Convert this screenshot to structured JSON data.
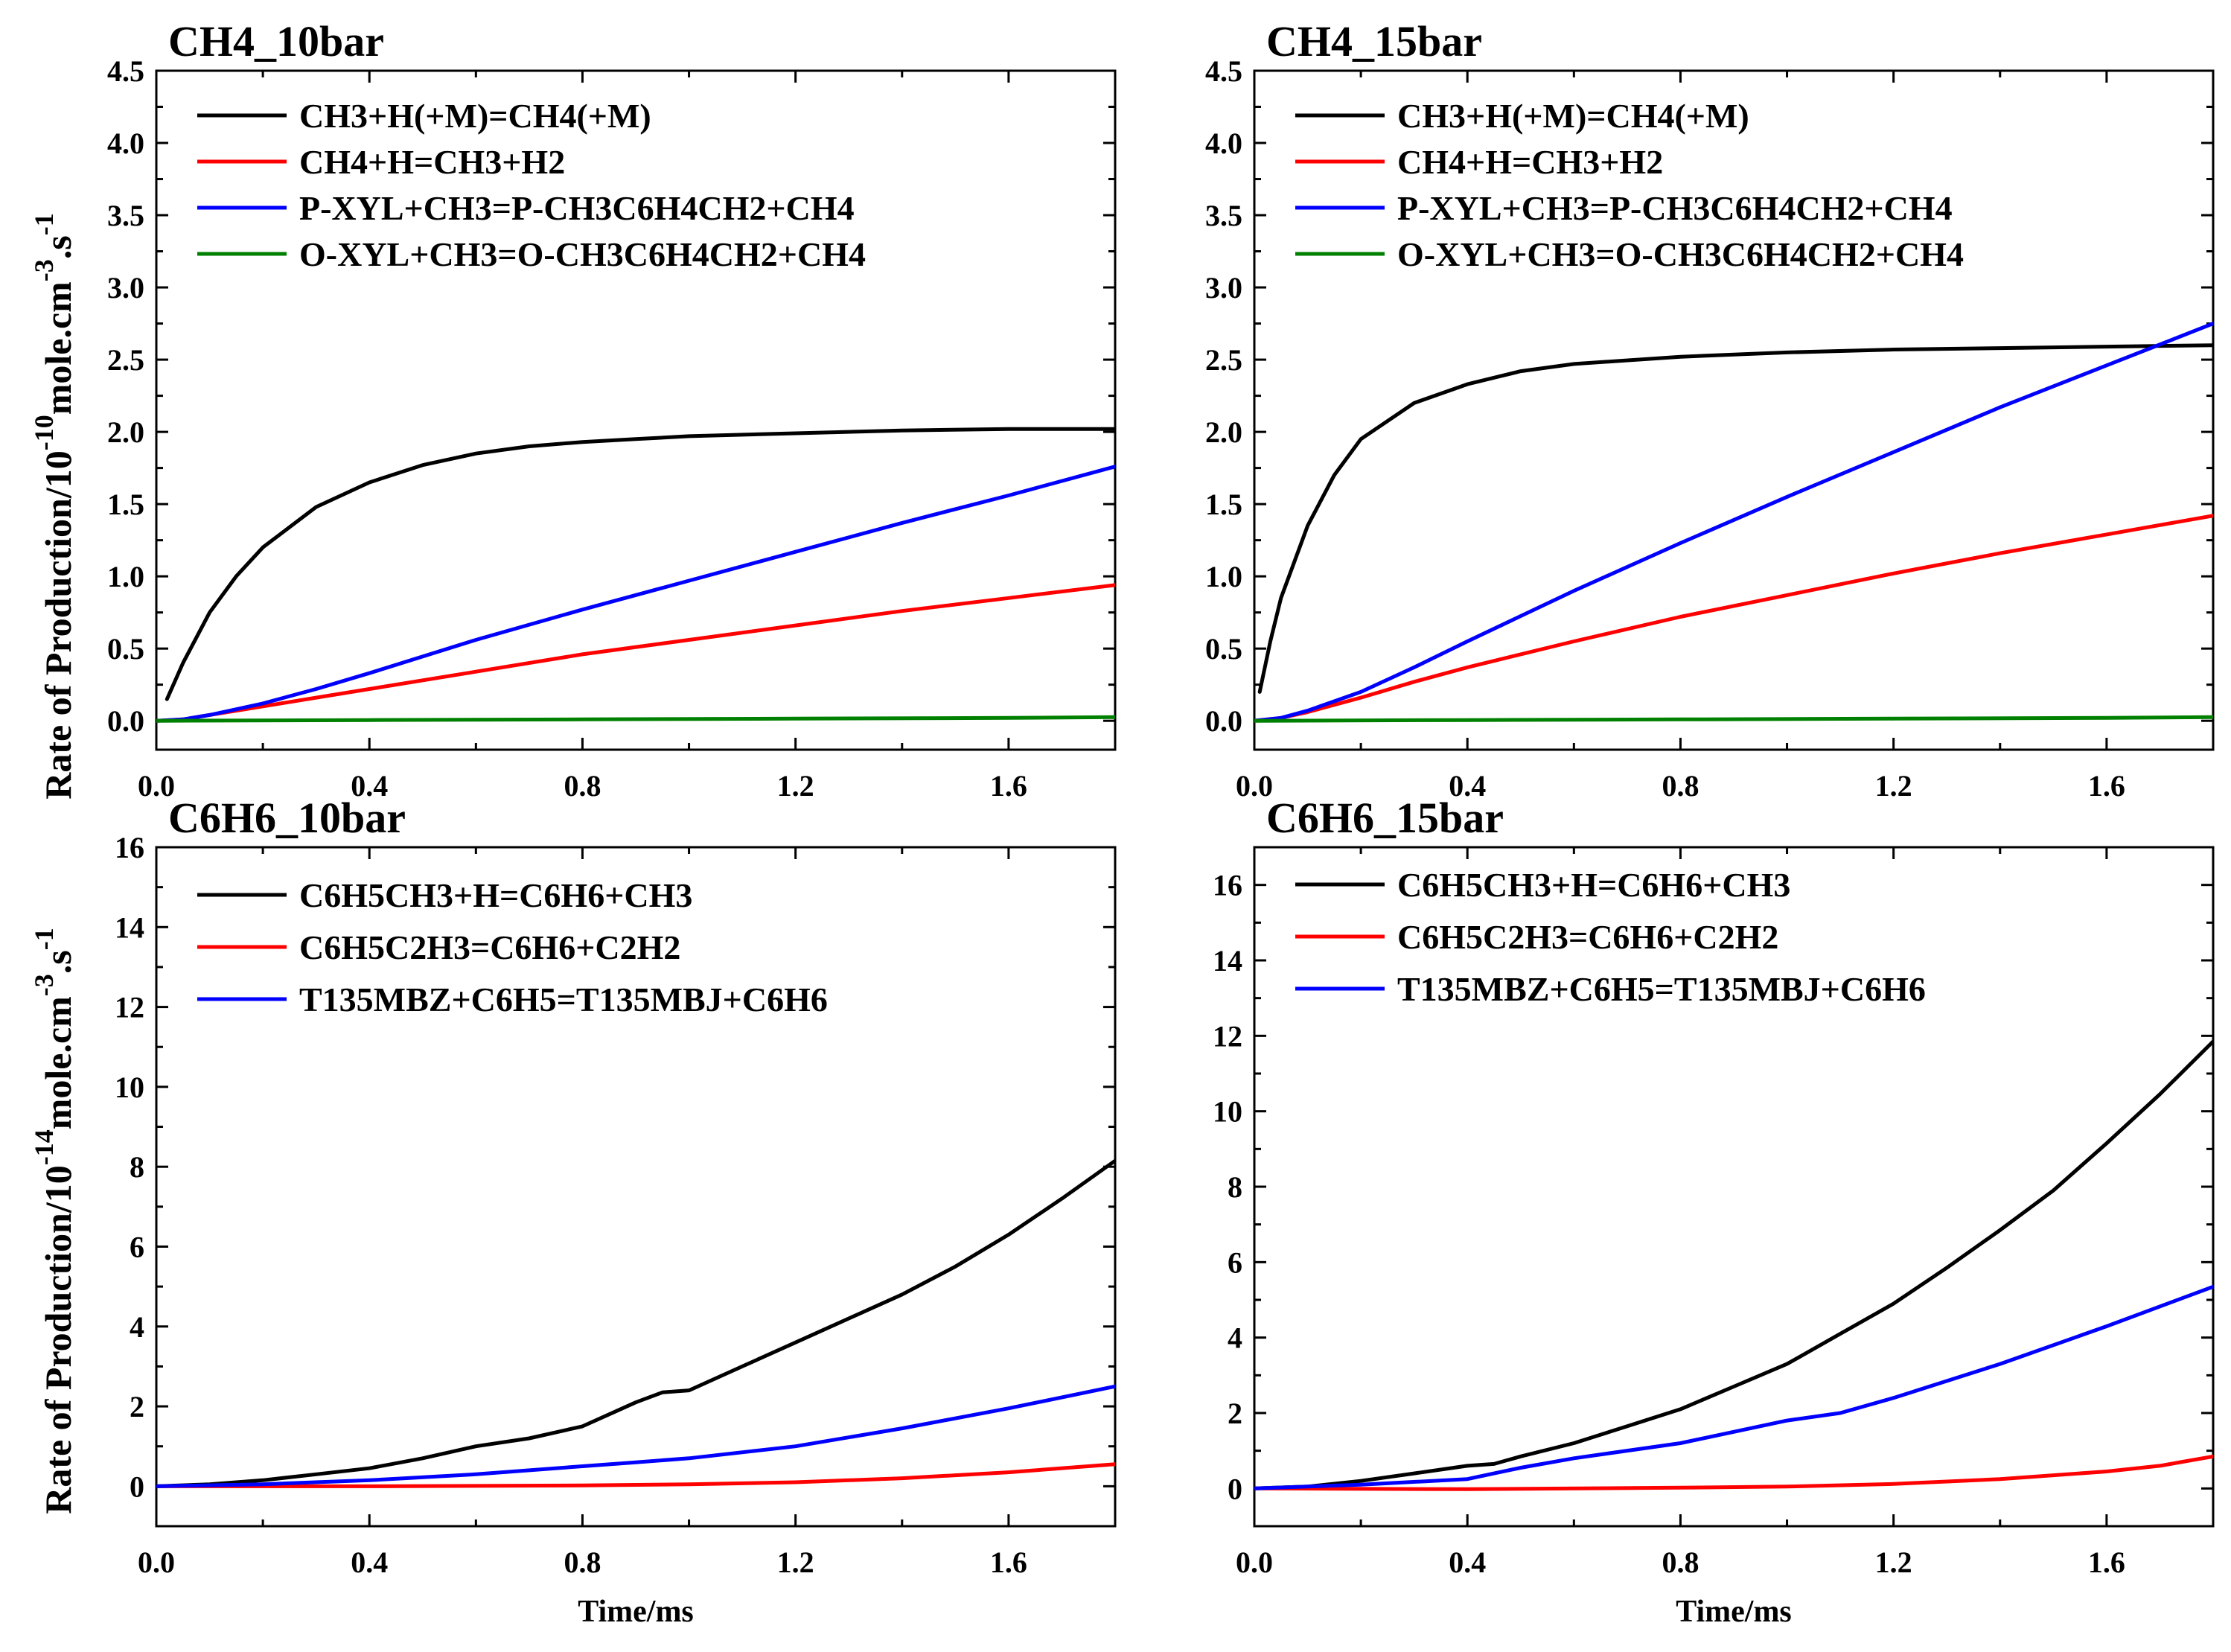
{
  "ylabel_top": {
    "main": "Rate of Production/10",
    "exp": "-10",
    "unit": "mole.cm",
    "unit_exp": "-3",
    "unit2": ".s",
    "unit2_exp": "-1"
  },
  "ylabel_bottom": {
    "main": "Rate of Production/10",
    "exp": "-14",
    "unit": "mole.cm",
    "unit_exp": "-3",
    "unit2": ".s",
    "unit2_exp": "-1"
  },
  "chart_data": [
    {
      "type": "line",
      "title": "CH4_10bar",
      "xlabel": "",
      "ylabel": "",
      "xlim": [
        0,
        1.8
      ],
      "ylim": [
        -0.2,
        4.5
      ],
      "xticks": [
        "0.0",
        "0.4",
        "0.8",
        "1.2",
        "1.6"
      ],
      "xtick_values": [
        0,
        0.4,
        0.8,
        1.2,
        1.6
      ],
      "yticks": [
        "0.0",
        "0.5",
        "1.0",
        "1.5",
        "2.0",
        "2.5",
        "3.0",
        "3.5",
        "4.0",
        "4.5"
      ],
      "ytick_values": [
        0,
        0.5,
        1.0,
        1.5,
        2.0,
        2.5,
        3.0,
        3.5,
        4.0,
        4.5
      ],
      "legend": "top-left",
      "series": [
        {
          "name": "CH3+H(+M)=CH4(+M)",
          "color": "#000000",
          "x": [
            0.02,
            0.05,
            0.1,
            0.15,
            0.2,
            0.3,
            0.4,
            0.5,
            0.6,
            0.7,
            0.8,
            0.9,
            1.0,
            1.2,
            1.4,
            1.6,
            1.8
          ],
          "y": [
            0.15,
            0.4,
            0.75,
            1.0,
            1.2,
            1.48,
            1.65,
            1.77,
            1.85,
            1.9,
            1.93,
            1.95,
            1.97,
            1.99,
            2.01,
            2.02,
            2.02
          ]
        },
        {
          "name": "CH4+H=CH3+H2",
          "color": "#ff0000",
          "x": [
            0.0,
            0.05,
            0.1,
            0.2,
            0.3,
            0.4,
            0.6,
            0.8,
            1.0,
            1.2,
            1.4,
            1.6,
            1.8
          ],
          "y": [
            0.0,
            0.01,
            0.04,
            0.1,
            0.16,
            0.22,
            0.34,
            0.46,
            0.56,
            0.66,
            0.76,
            0.85,
            0.94
          ]
        },
        {
          "name": "P-XYL+CH3=P-CH3C6H4CH2+CH4",
          "color": "#0000ff",
          "x": [
            0.0,
            0.05,
            0.1,
            0.2,
            0.3,
            0.4,
            0.6,
            0.8,
            1.0,
            1.2,
            1.4,
            1.6,
            1.8
          ],
          "y": [
            0.0,
            0.01,
            0.04,
            0.12,
            0.22,
            0.33,
            0.56,
            0.77,
            0.97,
            1.17,
            1.37,
            1.56,
            1.76
          ]
        },
        {
          "name": "O-XYL+CH3=O-CH3C6H4CH2+CH4",
          "color": "#008000",
          "x": [
            0.0,
            0.4,
            0.8,
            1.2,
            1.6,
            1.8
          ],
          "y": [
            0.0,
            0.005,
            0.01,
            0.015,
            0.02,
            0.025
          ]
        }
      ]
    },
    {
      "type": "line",
      "title": "CH4_15bar",
      "xlabel": "",
      "ylabel": "",
      "xlim": [
        0,
        1.8
      ],
      "ylim": [
        -0.2,
        4.5
      ],
      "xticks": [
        "0.0",
        "0.4",
        "0.8",
        "1.2",
        "1.6"
      ],
      "xtick_values": [
        0,
        0.4,
        0.8,
        1.2,
        1.6
      ],
      "yticks": [
        "0.0",
        "0.5",
        "1.0",
        "1.5",
        "2.0",
        "2.5",
        "3.0",
        "3.5",
        "4.0",
        "4.5"
      ],
      "ytick_values": [
        0,
        0.5,
        1.0,
        1.5,
        2.0,
        2.5,
        3.0,
        3.5,
        4.0,
        4.5
      ],
      "legend": "top-left",
      "series": [
        {
          "name": "CH3+H(+M)=CH4(+M)",
          "color": "#000000",
          "x": [
            0.01,
            0.03,
            0.05,
            0.1,
            0.15,
            0.2,
            0.3,
            0.4,
            0.5,
            0.6,
            0.8,
            1.0,
            1.2,
            1.4,
            1.6,
            1.8
          ],
          "y": [
            0.2,
            0.55,
            0.85,
            1.35,
            1.7,
            1.95,
            2.2,
            2.33,
            2.42,
            2.47,
            2.52,
            2.55,
            2.57,
            2.58,
            2.59,
            2.6
          ]
        },
        {
          "name": "CH4+H=CH3+H2",
          "color": "#ff0000",
          "x": [
            0.0,
            0.05,
            0.1,
            0.2,
            0.3,
            0.4,
            0.6,
            0.8,
            1.0,
            1.2,
            1.4,
            1.6,
            1.8
          ],
          "y": [
            0.0,
            0.02,
            0.06,
            0.16,
            0.27,
            0.37,
            0.55,
            0.72,
            0.87,
            1.02,
            1.16,
            1.29,
            1.42
          ]
        },
        {
          "name": "P-XYL+CH3=P-CH3C6H4CH2+CH4",
          "color": "#0000ff",
          "x": [
            0.0,
            0.05,
            0.1,
            0.2,
            0.3,
            0.4,
            0.6,
            0.8,
            1.0,
            1.2,
            1.4,
            1.6,
            1.8
          ],
          "y": [
            0.0,
            0.02,
            0.07,
            0.2,
            0.37,
            0.55,
            0.9,
            1.23,
            1.55,
            1.86,
            2.17,
            2.46,
            2.75
          ]
        },
        {
          "name": "O-XYL+CH3=O-CH3C6H4CH2+CH4",
          "color": "#008000",
          "x": [
            0.0,
            0.4,
            0.8,
            1.2,
            1.6,
            1.8
          ],
          "y": [
            0.0,
            0.005,
            0.01,
            0.015,
            0.02,
            0.025
          ]
        }
      ]
    },
    {
      "type": "line",
      "title": "C6H6_10bar",
      "xlabel": "Time/ms",
      "ylabel": "",
      "xlim": [
        0,
        1.8
      ],
      "ylim": [
        -1,
        16
      ],
      "xticks": [
        "0.0",
        "0.4",
        "0.8",
        "1.2",
        "1.6"
      ],
      "xtick_values": [
        0,
        0.4,
        0.8,
        1.2,
        1.6
      ],
      "yticks": [
        "0",
        "2",
        "4",
        "6",
        "8",
        "10",
        "12",
        "14",
        "16"
      ],
      "ytick_values": [
        0,
        2,
        4,
        6,
        8,
        10,
        12,
        14,
        16
      ],
      "legend": "top-left",
      "series": [
        {
          "name": "C6H5CH3+H=C6H6+CH3",
          "color": "#000000",
          "x": [
            0.0,
            0.1,
            0.2,
            0.3,
            0.4,
            0.5,
            0.6,
            0.7,
            0.8,
            0.85,
            0.9,
            0.95,
            1.0,
            1.1,
            1.2,
            1.3,
            1.4,
            1.5,
            1.6,
            1.7,
            1.8
          ],
          "y": [
            0.0,
            0.05,
            0.15,
            0.3,
            0.45,
            0.7,
            1.0,
            1.2,
            1.5,
            1.8,
            2.1,
            2.35,
            2.4,
            3.0,
            3.6,
            4.2,
            4.8,
            5.5,
            6.3,
            7.2,
            8.15
          ]
        },
        {
          "name": "C6H5C2H3=C6H6+C2H2",
          "color": "#ff0000",
          "x": [
            0.0,
            0.4,
            0.8,
            1.0,
            1.2,
            1.4,
            1.6,
            1.8
          ],
          "y": [
            0.0,
            0.0,
            0.02,
            0.05,
            0.1,
            0.2,
            0.35,
            0.55
          ]
        },
        {
          "name": "T135MBZ+C6H5=T135MBJ+C6H6",
          "color": "#0000ff",
          "x": [
            0.0,
            0.2,
            0.4,
            0.6,
            0.8,
            0.9,
            1.0,
            1.2,
            1.4,
            1.6,
            1.8
          ],
          "y": [
            0.0,
            0.05,
            0.15,
            0.3,
            0.5,
            0.6,
            0.7,
            1.0,
            1.45,
            1.95,
            2.5
          ]
        }
      ]
    },
    {
      "type": "line",
      "title": "C6H6_15bar",
      "xlabel": "Time/ms",
      "ylabel": "",
      "xlim": [
        0,
        1.8
      ],
      "ylim": [
        -1,
        17
      ],
      "xticks": [
        "0.0",
        "0.4",
        "0.8",
        "1.2",
        "1.6"
      ],
      "xtick_values": [
        0,
        0.4,
        0.8,
        1.2,
        1.6
      ],
      "yticks": [
        "0",
        "2",
        "4",
        "6",
        "8",
        "10",
        "12",
        "14",
        "16"
      ],
      "ytick_values": [
        0,
        2,
        4,
        6,
        8,
        10,
        12,
        14,
        16
      ],
      "legend": "top-left",
      "series": [
        {
          "name": "C6H5CH3+H=C6H6+CH3",
          "color": "#000000",
          "x": [
            0.0,
            0.1,
            0.2,
            0.3,
            0.4,
            0.45,
            0.5,
            0.6,
            0.7,
            0.8,
            0.9,
            1.0,
            1.1,
            1.2,
            1.3,
            1.4,
            1.5,
            1.6,
            1.7,
            1.8
          ],
          "y": [
            0.0,
            0.05,
            0.2,
            0.4,
            0.6,
            0.65,
            0.85,
            1.2,
            1.65,
            2.1,
            2.7,
            3.3,
            4.1,
            4.9,
            5.85,
            6.85,
            7.9,
            9.15,
            10.45,
            11.85
          ]
        },
        {
          "name": "C6H5C2H3=C6H6+C2H2",
          "color": "#ff0000",
          "x": [
            0.0,
            0.4,
            0.8,
            1.0,
            1.2,
            1.4,
            1.6,
            1.7,
            1.8
          ],
          "y": [
            0.0,
            -0.02,
            0.02,
            0.05,
            0.12,
            0.25,
            0.45,
            0.6,
            0.85
          ]
        },
        {
          "name": "T135MBZ+C6H5=T135MBJ+C6H6",
          "color": "#0000ff",
          "x": [
            0.0,
            0.2,
            0.4,
            0.5,
            0.6,
            0.8,
            1.0,
            1.1,
            1.2,
            1.4,
            1.6,
            1.8
          ],
          "y": [
            0.0,
            0.1,
            0.25,
            0.55,
            0.8,
            1.2,
            1.8,
            2.0,
            2.4,
            3.3,
            4.3,
            5.35
          ]
        }
      ]
    }
  ]
}
